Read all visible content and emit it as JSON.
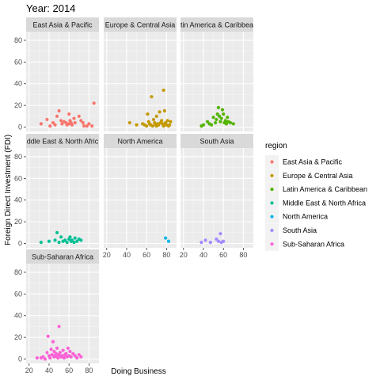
{
  "chart_data": {
    "type": "scatter",
    "title": "Year: 2014",
    "xlabel": "Doing Business",
    "ylabel": "Foreign Direct Investment (FDI)",
    "xlim": [
      17,
      90
    ],
    "ylim": [
      -4,
      88
    ],
    "x_ticks": [
      20,
      40,
      60,
      80
    ],
    "y_ticks": [
      0,
      20,
      40,
      60,
      80
    ],
    "grid": true,
    "legend_title": "region",
    "legend_position": "right",
    "panels": [
      {
        "name": "East Asia & Pacific",
        "strip_label": "East Asia & Pacific",
        "color": "#F8766D",
        "points": [
          [
            32,
            3
          ],
          [
            38,
            7
          ],
          [
            41,
            1
          ],
          [
            44,
            4
          ],
          [
            46,
            2
          ],
          [
            48,
            10
          ],
          [
            50,
            15
          ],
          [
            52,
            6
          ],
          [
            53,
            3
          ],
          [
            55,
            5
          ],
          [
            57,
            4
          ],
          [
            58,
            2
          ],
          [
            60,
            3
          ],
          [
            60,
            12
          ],
          [
            61,
            6
          ],
          [
            62,
            4
          ],
          [
            63,
            2
          ],
          [
            65,
            8
          ],
          [
            66,
            4
          ],
          [
            70,
            10
          ],
          [
            72,
            6
          ],
          [
            74,
            4
          ],
          [
            75,
            1
          ],
          [
            78,
            1
          ],
          [
            80,
            3
          ],
          [
            83,
            1
          ],
          [
            85,
            22
          ]
        ]
      },
      {
        "name": "Europe & Central Asia",
        "strip_label": "Europe & Central Asia",
        "color": "#C49A00",
        "points": [
          [
            43,
            4
          ],
          [
            50,
            2
          ],
          [
            56,
            3
          ],
          [
            58,
            2
          ],
          [
            60,
            1
          ],
          [
            61,
            12
          ],
          [
            62,
            5
          ],
          [
            63,
            3
          ],
          [
            64,
            2
          ],
          [
            65,
            28
          ],
          [
            66,
            1
          ],
          [
            67,
            7
          ],
          [
            68,
            4
          ],
          [
            69,
            2
          ],
          [
            70,
            1
          ],
          [
            70,
            10
          ],
          [
            71,
            3
          ],
          [
            72,
            2
          ],
          [
            73,
            14
          ],
          [
            74,
            4
          ],
          [
            75,
            6
          ],
          [
            76,
            3
          ],
          [
            77,
            34
          ],
          [
            77,
            1
          ],
          [
            78,
            15
          ],
          [
            78,
            2
          ],
          [
            79,
            4
          ],
          [
            80,
            2
          ],
          [
            81,
            6
          ],
          [
            82,
            1
          ],
          [
            83,
            2
          ],
          [
            84,
            5
          ]
        ]
      },
      {
        "name": "Latin America & Caribbean",
        "strip_label": "tin America & Caribbea",
        "color": "#53B400",
        "points": [
          [
            38,
            1
          ],
          [
            40,
            2
          ],
          [
            44,
            5
          ],
          [
            46,
            3
          ],
          [
            48,
            2
          ],
          [
            50,
            9
          ],
          [
            52,
            4
          ],
          [
            53,
            7
          ],
          [
            54,
            12
          ],
          [
            55,
            18
          ],
          [
            56,
            10
          ],
          [
            57,
            5
          ],
          [
            58,
            8
          ],
          [
            59,
            16
          ],
          [
            60,
            12
          ],
          [
            61,
            4
          ],
          [
            62,
            6
          ],
          [
            63,
            3
          ],
          [
            64,
            9
          ],
          [
            65,
            5
          ],
          [
            67,
            4
          ],
          [
            70,
            3
          ]
        ]
      },
      {
        "name": "Middle East & North Africa",
        "strip_label": "ddle East & North Afric",
        "color": "#00C094",
        "points": [
          [
            32,
            1
          ],
          [
            40,
            2
          ],
          [
            46,
            3
          ],
          [
            48,
            10
          ],
          [
            50,
            1
          ],
          [
            52,
            6
          ],
          [
            54,
            2
          ],
          [
            56,
            3
          ],
          [
            58,
            1
          ],
          [
            60,
            4
          ],
          [
            61,
            6
          ],
          [
            62,
            2
          ],
          [
            63,
            3
          ],
          [
            65,
            1
          ],
          [
            66,
            5
          ],
          [
            68,
            2
          ],
          [
            70,
            4
          ],
          [
            72,
            3
          ]
        ]
      },
      {
        "name": "North America",
        "strip_label": "North America",
        "color": "#00B6EB",
        "points": [
          [
            79,
            5
          ],
          [
            82,
            2
          ]
        ]
      },
      {
        "name": "South Asia",
        "strip_label": "South Asia",
        "color": "#A58AFF",
        "points": [
          [
            38,
            1
          ],
          [
            42,
            3
          ],
          [
            47,
            1
          ],
          [
            53,
            4
          ],
          [
            55,
            2
          ],
          [
            57,
            9
          ],
          [
            58,
            1
          ],
          [
            60,
            2
          ]
        ]
      },
      {
        "name": "Sub-Saharan Africa",
        "strip_label": "Sub-Saharan Africa",
        "color": "#FB61D7",
        "points": [
          [
            28,
            1
          ],
          [
            32,
            1
          ],
          [
            34,
            2
          ],
          [
            36,
            0
          ],
          [
            38,
            6
          ],
          [
            39,
            21
          ],
          [
            40,
            3
          ],
          [
            41,
            1
          ],
          [
            42,
            9
          ],
          [
            43,
            4
          ],
          [
            44,
            16
          ],
          [
            45,
            2
          ],
          [
            45,
            7
          ],
          [
            46,
            3
          ],
          [
            47,
            5
          ],
          [
            48,
            2
          ],
          [
            48,
            10
          ],
          [
            49,
            1
          ],
          [
            50,
            30
          ],
          [
            50,
            4
          ],
          [
            51,
            6
          ],
          [
            52,
            2
          ],
          [
            53,
            3
          ],
          [
            54,
            8
          ],
          [
            55,
            1
          ],
          [
            56,
            4
          ],
          [
            57,
            5
          ],
          [
            58,
            2
          ],
          [
            59,
            10
          ],
          [
            60,
            3
          ],
          [
            61,
            7
          ],
          [
            62,
            2
          ],
          [
            64,
            5
          ],
          [
            66,
            3
          ],
          [
            68,
            1
          ],
          [
            70,
            4
          ],
          [
            72,
            2
          ]
        ]
      }
    ]
  }
}
